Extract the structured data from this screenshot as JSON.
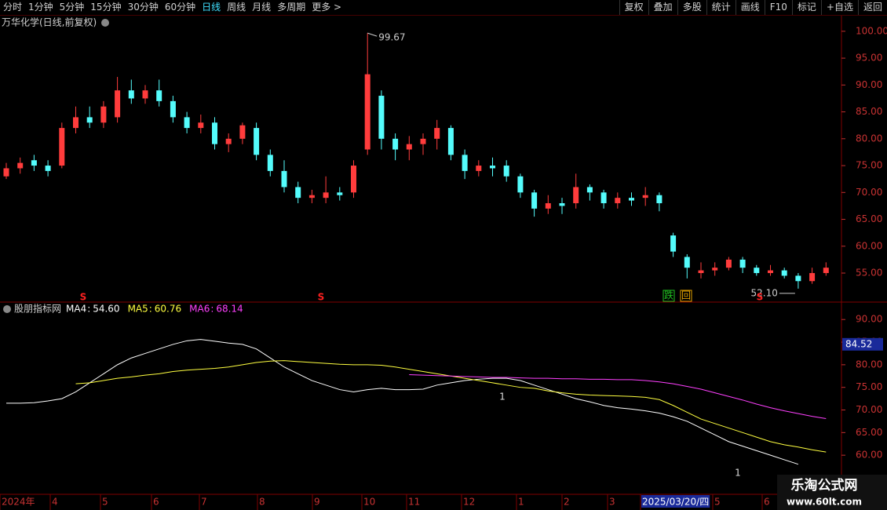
{
  "toolbar": {
    "left": [
      "分时",
      "1分钟",
      "5分钟",
      "15分钟",
      "30分钟",
      "60分钟",
      "日线",
      "周线",
      "月线",
      "多周期",
      "更多 >"
    ],
    "active": "日线",
    "right": [
      "复权",
      "叠加",
      "多股",
      "统计",
      "画线",
      "F10",
      "标记",
      "+自选",
      "返回"
    ]
  },
  "chart_data": [
    {
      "type": "candlestick",
      "title": "万华化学(日线,前复权)",
      "open": [
        73,
        74.5,
        76,
        75,
        75,
        82,
        84,
        83,
        84,
        89,
        87.5,
        89,
        87,
        84,
        82,
        83,
        79,
        80,
        82,
        77,
        74,
        71,
        69,
        69,
        70,
        70,
        78,
        88,
        80,
        78,
        79,
        80,
        82,
        77,
        74,
        75,
        75,
        73,
        70,
        67,
        68,
        68,
        71,
        70,
        68,
        69,
        69,
        69.5,
        62,
        58,
        55,
        55.5,
        56,
        57.5,
        56,
        55,
        55.5,
        54.5,
        53.5,
        55
      ],
      "close": [
        74.5,
        75.5,
        75,
        74,
        82,
        84,
        83,
        86,
        89,
        87.5,
        89,
        87,
        84,
        82,
        83,
        79,
        80,
        82.5,
        77,
        74,
        71,
        69,
        69.5,
        70,
        69.5,
        75,
        92,
        80,
        78,
        79,
        80,
        82,
        77,
        74,
        75,
        74.5,
        73,
        70,
        67,
        68,
        67.5,
        71,
        70,
        68,
        69,
        68.5,
        69.5,
        68,
        59,
        56,
        55.5,
        56,
        57.5,
        56,
        55,
        55.5,
        54.5,
        53.5,
        55,
        56
      ],
      "high": [
        75.5,
        76.5,
        77,
        76,
        83,
        86,
        86,
        87,
        91.5,
        91,
        90,
        91,
        88,
        85,
        84.5,
        84,
        81,
        83,
        83,
        78,
        76,
        72,
        70.5,
        73,
        71,
        76,
        99.67,
        89,
        81,
        80.5,
        81,
        83.5,
        82.5,
        78,
        76,
        76.5,
        76,
        73.5,
        70.5,
        69.5,
        69,
        73.5,
        71.5,
        70.5,
        70,
        70,
        71,
        70,
        62.5,
        58.5,
        57,
        57,
        58,
        58,
        56.5,
        56.5,
        56,
        55,
        56,
        57
      ],
      "low": [
        72.5,
        73.5,
        74,
        73,
        74.5,
        81,
        82,
        82,
        83,
        86.5,
        86.5,
        86,
        83,
        81,
        81,
        78,
        77.5,
        79,
        76,
        73,
        70,
        68,
        68,
        68,
        68.5,
        69,
        77,
        78,
        76,
        76,
        77,
        78,
        76,
        72.5,
        73,
        73,
        72,
        69,
        65.5,
        66,
        66,
        67,
        68.5,
        67,
        67,
        67.5,
        67.5,
        66.5,
        58,
        54,
        54,
        54.5,
        55.5,
        55,
        54.5,
        54.5,
        54,
        52.1,
        53,
        54.5
      ],
      "up_color": "#ff3c3c",
      "down_color": "#54fcfc",
      "ylim": [
        49.6,
        102.9
      ],
      "yticks": [
        {
          "value": 100,
          "label": "100.00"
        },
        {
          "value": 95,
          "label": "95.00"
        },
        {
          "value": 90,
          "label": "90.00"
        },
        {
          "value": 85,
          "label": "85.00"
        },
        {
          "value": 80,
          "label": "80.00"
        },
        {
          "value": 75,
          "label": "75.00"
        },
        {
          "value": 70,
          "label": "70.00"
        },
        {
          "value": 65,
          "label": "65.00"
        },
        {
          "value": 60,
          "label": "60.00"
        },
        {
          "value": 55,
          "label": "55.00"
        }
      ],
      "annotations": [
        99.67,
        {
          "value": 52.1,
          "label": "52.10"
        }
      ],
      "signals": [
        "S",
        "S",
        "S"
      ],
      "events": [
        "跌",
        "回"
      ]
    },
    {
      "type": "line",
      "title": "股朋指标网",
      "series": [
        {
          "name": "MA4",
          "color": "#ffffff",
          "readout": {
            "value": 54.6,
            "label": "54.60"
          },
          "values": [
            71.5,
            71.5,
            71.6,
            72,
            72.5,
            74,
            76,
            78,
            80,
            81.5,
            82.5,
            83.5,
            84.5,
            85.3,
            85.6,
            85.2,
            84.8,
            84.5,
            83.5,
            81.5,
            79.5,
            78,
            76.5,
            75.5,
            74.5,
            74,
            74.5,
            74.8,
            74.5,
            74.5,
            74.6,
            75.5,
            76,
            76.5,
            76.8,
            77,
            77,
            76.5,
            75.5,
            74.5,
            73.5,
            72.5,
            71.8,
            71,
            70.5,
            70.2,
            69.8,
            69.3,
            68.5,
            67.5,
            66,
            64.5,
            63,
            62,
            61,
            60,
            59,
            58,
            null,
            null
          ]
        },
        {
          "name": "MA5",
          "color": "#ffff40",
          "readout": {
            "value": 60.76,
            "label": "60.76"
          },
          "values": [
            null,
            null,
            null,
            null,
            null,
            75.8,
            76,
            76.5,
            77,
            77.3,
            77.7,
            78,
            78.5,
            78.8,
            79,
            79.2,
            79.5,
            80,
            80.5,
            80.8,
            80.9,
            80.7,
            80.5,
            80.3,
            80.1,
            80,
            80,
            79.9,
            79.5,
            79,
            78.5,
            78,
            77.5,
            77,
            76.5,
            76,
            75.5,
            75,
            74.8,
            74.2,
            73.8,
            73.5,
            73.3,
            73.2,
            73.1,
            73,
            72.8,
            72.3,
            71,
            69.5,
            68,
            67,
            66,
            65,
            64,
            63,
            62.3,
            61.8,
            61.2,
            60.7
          ]
        },
        {
          "name": "MA6",
          "color": "#ff40ff",
          "readout": {
            "value": 68.14,
            "label": "68.14"
          },
          "values": [
            null,
            null,
            null,
            null,
            null,
            null,
            null,
            null,
            null,
            null,
            null,
            null,
            null,
            null,
            null,
            null,
            null,
            null,
            null,
            null,
            null,
            null,
            null,
            null,
            null,
            null,
            null,
            null,
            null,
            77.8,
            77.7,
            77.6,
            77.5,
            77.4,
            77.3,
            77.2,
            77.2,
            77.1,
            77,
            77,
            76.9,
            76.9,
            76.8,
            76.8,
            76.7,
            76.7,
            76.5,
            76.2,
            75.8,
            75.2,
            74.6,
            73.8,
            73,
            72.2,
            71.3,
            70.5,
            69.8,
            69.2,
            68.6,
            68.1
          ]
        }
      ],
      "ylim": [
        51.7,
        91.6
      ],
      "yticks": [
        {
          "value": 90,
          "label": "90.00"
        },
        {
          "value": 85,
          "label": "85.00"
        },
        {
          "value": 80,
          "label": "80.00"
        },
        {
          "value": 75,
          "label": "75.00"
        },
        {
          "value": 70,
          "label": "70.00"
        },
        {
          "value": 65,
          "label": "65.00"
        },
        {
          "value": 60,
          "label": "60.00"
        }
      ],
      "cursor_value": 84.52,
      "markers": [
        "1",
        "1"
      ]
    }
  ],
  "x_axis_labels": [
    "2024年",
    "4",
    "5",
    "6",
    "7",
    "8",
    "9",
    "10",
    "11",
    "12",
    "1",
    "2",
    "3",
    "2025/03/20/四",
    "5",
    "6"
  ],
  "watermark": {
    "title": "乐淘公式网",
    "url": "www.60lt.com"
  }
}
